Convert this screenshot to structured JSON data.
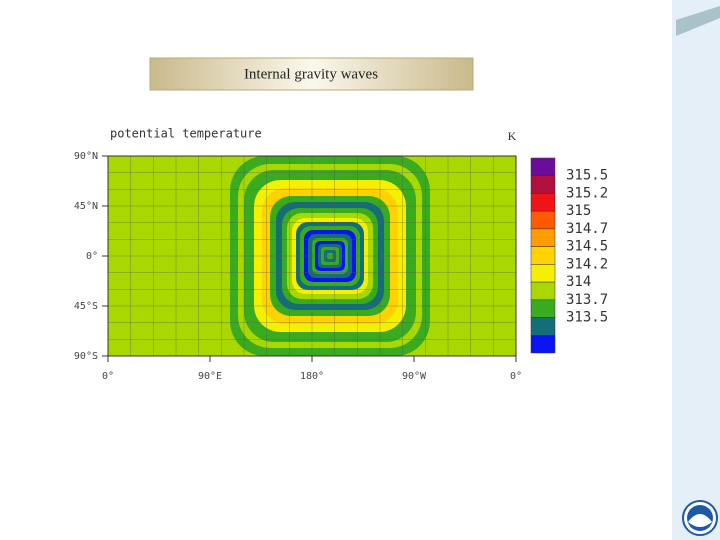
{
  "slide": {
    "title": "Internal gravity waves"
  },
  "plot": {
    "title": "potential temperature",
    "unit": "K",
    "y_tick_labels": [
      "90°N",
      "45°N",
      "0°",
      "45°S",
      "90°S"
    ],
    "x_tick_labels": [
      "0°",
      "90°E",
      "180°",
      "90°W",
      "0°"
    ],
    "colorbar": {
      "labels": [
        "315.5",
        "315.2",
        "315",
        "314.7",
        "314.5",
        "314.2",
        "314",
        "313.7",
        "313.5"
      ],
      "colors": [
        "#6a0e9a",
        "#b0103c",
        "#f01414",
        "#ff5a00",
        "#ff9c00",
        "#ffd200",
        "#f4f000",
        "#a8d800",
        "#3aaa1e",
        "#146e78",
        "#0a14f0"
      ]
    }
  }
}
